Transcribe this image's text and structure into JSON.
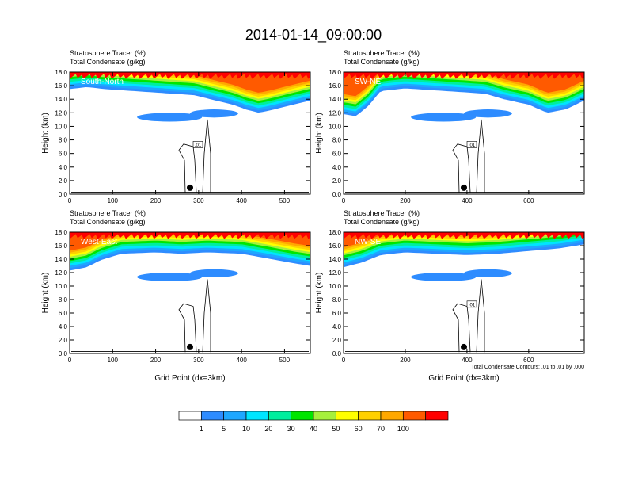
{
  "title": "2014-01-14_09:00:00",
  "panel_label_line1": "Stratosphere Tracer   (%)",
  "panel_label_line2": "Total Condensate   (g/kg)",
  "ylabel": "Height (km)",
  "xlabel": "Grid Point (dx=3km)",
  "contour_note": "Total Condensate Contours: .01 to .01 by .000",
  "colorbar": {
    "colors": [
      "#ffffff",
      "#2e8cff",
      "#1ea7ff",
      "#00e5ff",
      "#00ee9e",
      "#00e600",
      "#a6f03c",
      "#ffff00",
      "#ffd000",
      "#ffa800",
      "#ff5a00",
      "#ff0000"
    ],
    "labels": [
      "1",
      "5",
      "10",
      "20",
      "30",
      "40",
      "50",
      "60",
      "70",
      "100"
    ]
  },
  "chart_data": [
    {
      "type": "heatmap",
      "name": "South-North",
      "xlim": [
        0,
        560
      ],
      "ylim": [
        0,
        18
      ],
      "xticks": [
        "0",
        "100",
        "200",
        "300",
        "400",
        "500"
      ],
      "yticks": [
        "0.0",
        "2.0",
        "4.0",
        "6.0",
        "8.0",
        "10.0",
        "12.0",
        "14.0",
        "16.0",
        "18.0"
      ],
      "contour_label": ".01",
      "marker_x": 280,
      "tracer_base_km": [
        [
          0,
          15.5
        ],
        [
          40,
          15.8
        ],
        [
          80,
          15.5
        ],
        [
          150,
          15.2
        ],
        [
          220,
          14.9
        ],
        [
          290,
          14.6
        ],
        [
          340,
          13.8
        ],
        [
          380,
          13.2
        ],
        [
          410,
          12.5
        ],
        [
          440,
          12.0
        ],
        [
          470,
          12.4
        ],
        [
          520,
          13.2
        ],
        [
          560,
          13.8
        ]
      ]
    },
    {
      "type": "heatmap",
      "name": "SW-NE",
      "xlim": [
        0,
        780
      ],
      "ylim": [
        0,
        18
      ],
      "xticks": [
        "0",
        "200",
        "400",
        "600"
      ],
      "yticks": [
        "0.0",
        "2.0",
        "4.0",
        "6.0",
        "8.0",
        "10.0",
        "12.0",
        "14.0",
        "16.0",
        "18.0"
      ],
      "contour_label": ".01",
      "marker_x": 390,
      "tracer_base_km": [
        [
          0,
          11.8
        ],
        [
          40,
          11.5
        ],
        [
          80,
          13.0
        ],
        [
          120,
          15.2
        ],
        [
          200,
          15.6
        ],
        [
          300,
          15.3
        ],
        [
          400,
          15.0
        ],
        [
          460,
          14.8
        ],
        [
          520,
          14.0
        ],
        [
          600,
          13.2
        ],
        [
          660,
          12.0
        ],
        [
          720,
          12.5
        ],
        [
          780,
          13.8
        ]
      ]
    },
    {
      "type": "heatmap",
      "name": "West-East",
      "xlim": [
        0,
        560
      ],
      "ylim": [
        0,
        18
      ],
      "xticks": [
        "0",
        "100",
        "200",
        "300",
        "400",
        "500"
      ],
      "yticks": [
        "0.0",
        "2.0",
        "4.0",
        "6.0",
        "8.0",
        "10.0",
        "12.0",
        "14.0",
        "16.0",
        "18.0"
      ],
      "contour_label": "",
      "marker_x": 280,
      "tracer_base_km": [
        [
          0,
          12.3
        ],
        [
          40,
          12.8
        ],
        [
          70,
          13.8
        ],
        [
          120,
          14.8
        ],
        [
          200,
          15.0
        ],
        [
          260,
          14.8
        ],
        [
          320,
          15.0
        ],
        [
          400,
          14.8
        ],
        [
          470,
          14.0
        ],
        [
          520,
          13.4
        ],
        [
          560,
          13.0
        ]
      ]
    },
    {
      "type": "heatmap",
      "name": "NW-SE",
      "xlim": [
        0,
        780
      ],
      "ylim": [
        0,
        18
      ],
      "xticks": [
        "0",
        "200",
        "400",
        "600"
      ],
      "yticks": [
        "0.0",
        "2.0",
        "4.0",
        "6.0",
        "8.0",
        "10.0",
        "12.0",
        "14.0",
        "16.0",
        "18.0"
      ],
      "contour_label": ".01",
      "marker_x": 390,
      "tracer_base_km": [
        [
          0,
          12.8
        ],
        [
          60,
          13.5
        ],
        [
          120,
          14.6
        ],
        [
          200,
          15.0
        ],
        [
          300,
          14.8
        ],
        [
          400,
          14.6
        ],
        [
          500,
          14.8
        ],
        [
          600,
          15.2
        ],
        [
          700,
          15.6
        ],
        [
          780,
          16.2
        ]
      ]
    }
  ]
}
